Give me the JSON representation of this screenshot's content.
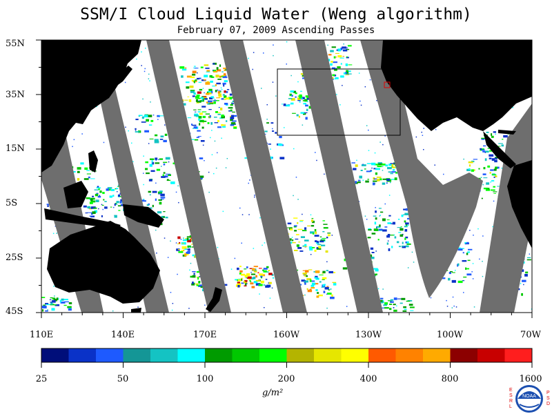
{
  "header": {
    "title": "SSM/I Cloud Liquid Water (Weng algorithm)",
    "subtitle": "February 07, 2009  Ascending Passes"
  },
  "map": {
    "lat_labels": [
      "55N",
      "35N",
      "15N",
      "5S",
      "25S",
      "45S"
    ],
    "lon_labels": [
      "110E",
      "140E",
      "170E",
      "160W",
      "130W",
      "100W",
      "70W"
    ],
    "colors": {
      "land": "#000000",
      "no_data_swath_gap": "#6e6e6e",
      "ocean_clear": "#ffffff"
    }
  },
  "colorbar": {
    "tick_labels": [
      "25",
      "50",
      "100",
      "200",
      "400",
      "800",
      "1600"
    ],
    "unit": "g/m²",
    "colors": [
      "#000e7a",
      "#0a32c8",
      "#1e5aff",
      "#149696",
      "#14c3c3",
      "#00ffff",
      "#009b00",
      "#00c800",
      "#00ff00",
      "#b4b400",
      "#e6e600",
      "#ffff00",
      "#ff5a00",
      "#ff8200",
      "#ffaa00",
      "#8c0000",
      "#c80000",
      "#ff1e1e"
    ]
  },
  "logo": {
    "left_letters": "ESRL",
    "right_letters": "PSD",
    "center_text": "NOAA"
  }
}
